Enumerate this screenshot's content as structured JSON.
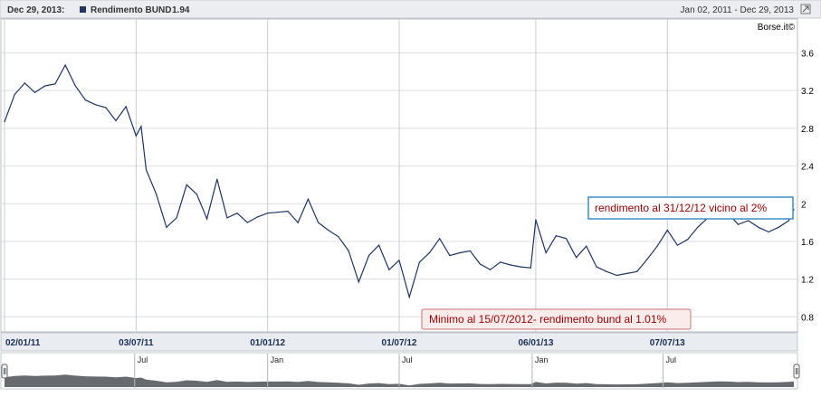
{
  "header": {
    "date": "Dec 29, 2013:",
    "series_label": "Rendimento BUND",
    "last_value": "1.94",
    "range": "Jan 02, 2011 - Dec 29, 2013",
    "brand": "Borse.it©"
  },
  "colors": {
    "line": "#1e3566",
    "marker": "#1e3566",
    "annotation_top_border": "#3a8fc6",
    "annotation_top_text": "#a00000",
    "annotation_bottom_border": "#c97070",
    "annotation_bottom_fill": "#fbecec",
    "annotation_bottom_text": "#a00000",
    "navigator_fill": "#676b70"
  },
  "annotations": {
    "top": "rendimento al 31/12/12 vicino al 2%",
    "bottom": "Minimo al 15/07/2012- rendimento bund al 1.01%"
  },
  "navigator": {
    "labels": [
      "Jul",
      "Jan",
      "Jul",
      "Jan",
      "Jul"
    ]
  },
  "chart_data": {
    "type": "line",
    "title": "Rendimento BUND",
    "xlabel": "",
    "ylabel": "",
    "ylim": [
      0.65,
      3.95
    ],
    "y_ticks": [
      "3.6",
      "3.2",
      "2.8",
      "2.4",
      "2",
      "1.6",
      "1.2",
      "0.8"
    ],
    "y_tick_values": [
      3.6,
      3.2,
      2.8,
      2.4,
      2.0,
      1.6,
      1.2,
      0.8
    ],
    "x_tick_labels": [
      "02/01/11",
      "03/07/11",
      "01/01/12",
      "01/07/12",
      "06/01/13",
      "07/07/13"
    ],
    "x_tick_dates": [
      "2011-01-02",
      "2011-07-03",
      "2012-01-01",
      "2012-07-01",
      "2013-01-06",
      "2013-07-07"
    ],
    "xlim": [
      "2011-01-02",
      "2013-12-29"
    ],
    "grid": true,
    "series": [
      {
        "name": "Rendimento BUND",
        "x": [
          "2011-01-02",
          "2011-01-16",
          "2011-01-30",
          "2011-02-13",
          "2011-02-27",
          "2011-03-13",
          "2011-03-27",
          "2011-04-10",
          "2011-04-24",
          "2011-05-08",
          "2011-05-22",
          "2011-06-05",
          "2011-06-19",
          "2011-07-03",
          "2011-07-10",
          "2011-07-17",
          "2011-07-31",
          "2011-08-14",
          "2011-08-28",
          "2011-09-11",
          "2011-09-25",
          "2011-10-09",
          "2011-10-23",
          "2011-11-06",
          "2011-11-20",
          "2011-12-04",
          "2011-12-18",
          "2012-01-01",
          "2012-01-15",
          "2012-01-29",
          "2012-02-12",
          "2012-02-26",
          "2012-03-11",
          "2012-03-25",
          "2012-04-08",
          "2012-04-22",
          "2012-05-06",
          "2012-05-20",
          "2012-06-03",
          "2012-06-17",
          "2012-07-01",
          "2012-07-15",
          "2012-07-29",
          "2012-08-12",
          "2012-08-26",
          "2012-09-09",
          "2012-09-23",
          "2012-10-07",
          "2012-10-21",
          "2012-11-04",
          "2012-11-18",
          "2012-12-02",
          "2012-12-16",
          "2012-12-30",
          "2013-01-06",
          "2013-01-20",
          "2013-02-03",
          "2013-02-17",
          "2013-03-03",
          "2013-03-17",
          "2013-03-31",
          "2013-04-14",
          "2013-04-28",
          "2013-05-12",
          "2013-05-26",
          "2013-06-09",
          "2013-06-23",
          "2013-07-07",
          "2013-07-21",
          "2013-08-04",
          "2013-08-18",
          "2013-09-01",
          "2013-09-15",
          "2013-09-29",
          "2013-10-13",
          "2013-10-27",
          "2013-11-10",
          "2013-11-24",
          "2013-12-08",
          "2013-12-22",
          "2013-12-29"
        ],
        "values": [
          2.87,
          3.16,
          3.28,
          3.18,
          3.25,
          3.27,
          3.47,
          3.25,
          3.1,
          3.05,
          3.02,
          2.88,
          3.03,
          2.72,
          2.82,
          2.36,
          2.1,
          1.75,
          1.85,
          2.2,
          2.1,
          1.84,
          2.26,
          1.85,
          1.9,
          1.8,
          1.86,
          1.9,
          1.91,
          1.92,
          1.8,
          2.05,
          1.8,
          1.72,
          1.65,
          1.5,
          1.17,
          1.45,
          1.56,
          1.3,
          1.4,
          1.01,
          1.38,
          1.48,
          1.63,
          1.45,
          1.48,
          1.5,
          1.36,
          1.3,
          1.38,
          1.35,
          1.33,
          1.32,
          1.83,
          1.48,
          1.66,
          1.63,
          1.43,
          1.55,
          1.33,
          1.28,
          1.24,
          1.26,
          1.28,
          1.41,
          1.55,
          1.72,
          1.56,
          1.62,
          1.75,
          1.85,
          1.95,
          1.9,
          1.78,
          1.82,
          1.75,
          1.7,
          1.75,
          1.82,
          1.94
        ]
      }
    ]
  }
}
